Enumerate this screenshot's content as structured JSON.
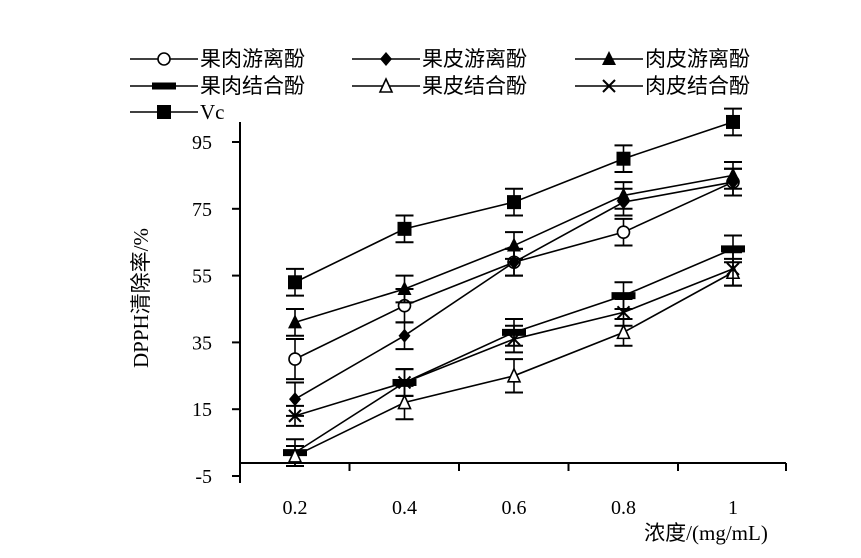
{
  "chart_data": {
    "type": "line",
    "xlabel": "浓度/(mg/mL)",
    "ylabel": "DPPH清除率/%",
    "x_ticks": [
      "0.2",
      "0.4",
      "0.6",
      "0.8",
      "1"
    ],
    "x": [
      0.2,
      0.4,
      0.6,
      0.8,
      1.0
    ],
    "y_ticks": [
      "-5",
      "15",
      "35",
      "55",
      "75",
      "95"
    ],
    "ylim": [
      -5,
      95
    ],
    "grid": false,
    "legend_position": "top",
    "series": [
      {
        "name": "果肉游离酚",
        "marker": "circle-open",
        "values": [
          30,
          46,
          59,
          68,
          83
        ],
        "errors": [
          6,
          5,
          4,
          4,
          4
        ]
      },
      {
        "name": "果皮游离酚",
        "marker": "diamond",
        "values": [
          18,
          37,
          59,
          77,
          83
        ],
        "errors": [
          5,
          4,
          4,
          4,
          4
        ]
      },
      {
        "name": "肉皮游离酚",
        "marker": "triangle",
        "values": [
          41,
          51,
          64,
          79,
          85
        ],
        "errors": [
          4,
          4,
          4,
          4,
          4
        ]
      },
      {
        "name": "果肉结合酚",
        "marker": "bar",
        "values": [
          2,
          23,
          38,
          49,
          63
        ],
        "errors": [
          4,
          4,
          4,
          4,
          4
        ]
      },
      {
        "name": "果皮结合酚",
        "marker": "triangle-open",
        "values": [
          1,
          17,
          25,
          38,
          56
        ],
        "errors": [
          3,
          5,
          5,
          4,
          4
        ]
      },
      {
        "name": "肉皮结合酚",
        "marker": "x",
        "values": [
          13,
          23,
          36,
          44,
          57
        ],
        "errors": [
          3,
          4,
          4,
          4,
          5
        ]
      },
      {
        "name": "Vc",
        "marker": "square",
        "values": [
          53,
          69,
          77,
          90,
          101
        ],
        "errors": [
          4,
          4,
          4,
          4,
          4
        ]
      }
    ]
  }
}
